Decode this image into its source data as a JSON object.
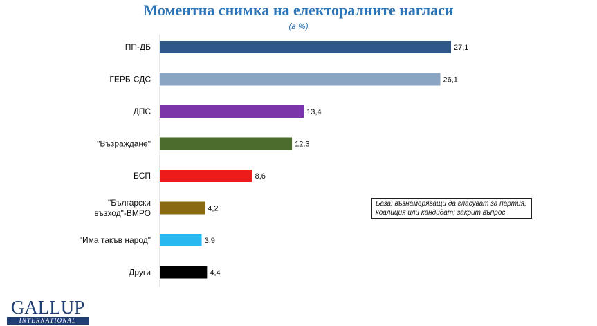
{
  "title": "Моментна снимка на електоралните нагласи",
  "subtitle": "(в %)",
  "note": "База: възнамеряващи да гласуват за партия, коалиция или кандидат; закрит въпрос",
  "logo": {
    "main": "GALLUP",
    "sub": "INTERNATIONAL"
  },
  "chart_data": {
    "type": "bar",
    "orientation": "horizontal",
    "categories": [
      "ПП-ДБ",
      "ГЕРБ-СДС",
      "ДПС",
      "\"Възраждане\"",
      "БСП",
      "\"Български възход\"-ВМРО",
      "\"Има такъв народ\"",
      "Други"
    ],
    "category_lines": [
      [
        "ПП-ДБ"
      ],
      [
        "ГЕРБ-СДС"
      ],
      [
        "ДПС"
      ],
      [
        "\"Възраждане\""
      ],
      [
        "БСП"
      ],
      [
        "\"Български",
        "възход\"-ВМРО"
      ],
      [
        "\"Има такъв народ\""
      ],
      [
        "Други"
      ]
    ],
    "values": [
      27.1,
      26.1,
      13.4,
      12.3,
      8.6,
      4.2,
      3.9,
      4.4
    ],
    "value_labels": [
      "27,1",
      "26,1",
      "13,4",
      "12,3",
      "8,6",
      "4,2",
      "3,9",
      "4,4"
    ],
    "colors": [
      "#2f5888",
      "#8aa4c4",
      "#7b35a8",
      "#4b6c2d",
      "#ee1b1b",
      "#8a6a10",
      "#29b8ef",
      "#000000"
    ],
    "title": "Моментна снимка на електоралните нагласи",
    "subtitle": "(в %)",
    "xlim": [
      0,
      27.1
    ],
    "grid": false,
    "legend": "none"
  }
}
